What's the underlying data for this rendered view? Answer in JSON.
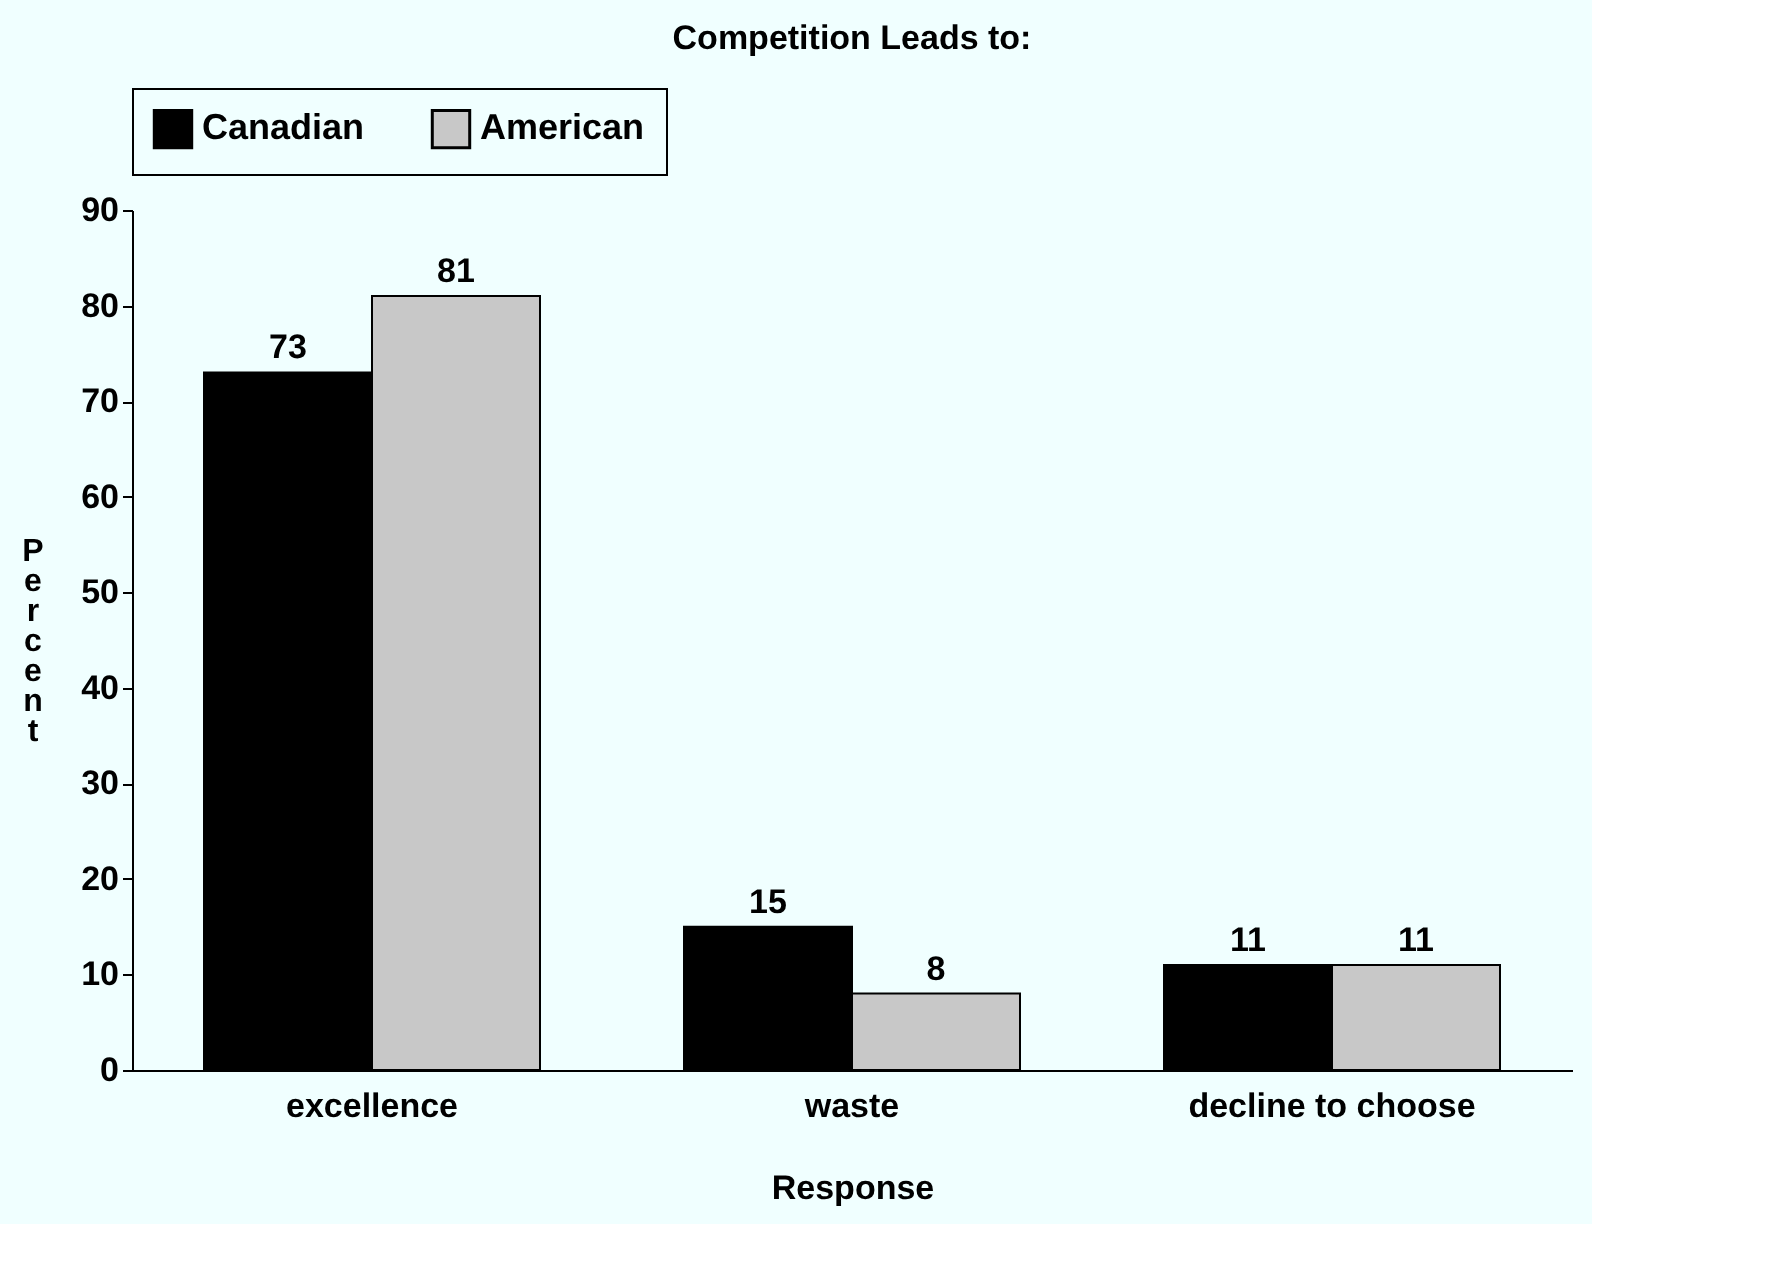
{
  "chart_data": {
    "type": "bar",
    "title": "Competition Leads to:",
    "xlabel": "Response",
    "ylabel": "Percent",
    "categories": [
      "excellence",
      "waste",
      "decline to choose"
    ],
    "series": [
      {
        "name": "Canadian",
        "color": "#000000",
        "values": [
          73,
          15,
          11
        ]
      },
      {
        "name": "American",
        "color": "#c8c8c8",
        "values": [
          81,
          8,
          11
        ]
      }
    ],
    "ylim": [
      0,
      90
    ],
    "yticks": [
      0,
      10,
      20,
      30,
      40,
      50,
      60,
      70,
      80,
      90
    ],
    "grid": false,
    "legend": "top",
    "data_labels": true
  }
}
